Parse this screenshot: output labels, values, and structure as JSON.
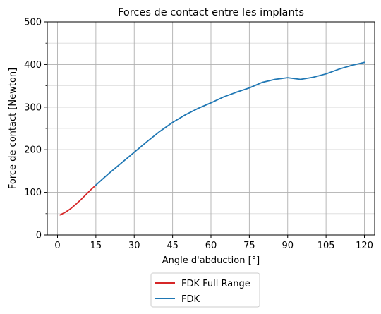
{
  "chart_data": {
    "type": "line",
    "title": "Forces de contact entre les implants",
    "xlabel": "Angle d'abduction [°]",
    "ylabel": "Force de contact [Newton]",
    "xlim": [
      -4,
      124
    ],
    "ylim": [
      0,
      500
    ],
    "xticks": [
      0,
      15,
      30,
      45,
      60,
      75,
      90,
      105,
      120
    ],
    "yticks": [
      0,
      100,
      200,
      300,
      400,
      500
    ],
    "yticks_minor": [
      50,
      150,
      250,
      350,
      450
    ],
    "grid": true,
    "legend_position": "bottom-center-outside",
    "series": [
      {
        "name": "FDK Full Range",
        "color": "#d62728",
        "x": [
          1,
          3,
          5,
          7,
          9,
          11,
          13,
          15
        ],
        "y": [
          47,
          53,
          61,
          71,
          82,
          94,
          106,
          117
        ]
      },
      {
        "name": "FDK",
        "color": "#1f77b4",
        "x": [
          15,
          20,
          25,
          30,
          35,
          40,
          45,
          50,
          55,
          60,
          65,
          70,
          75,
          80,
          85,
          90,
          95,
          100,
          105,
          110,
          115,
          120
        ],
        "y": [
          117,
          144,
          169,
          194,
          219,
          243,
          264,
          282,
          297,
          310,
          324,
          335,
          345,
          358,
          365,
          369,
          365,
          370,
          378,
          389,
          398,
          405
        ]
      }
    ]
  }
}
